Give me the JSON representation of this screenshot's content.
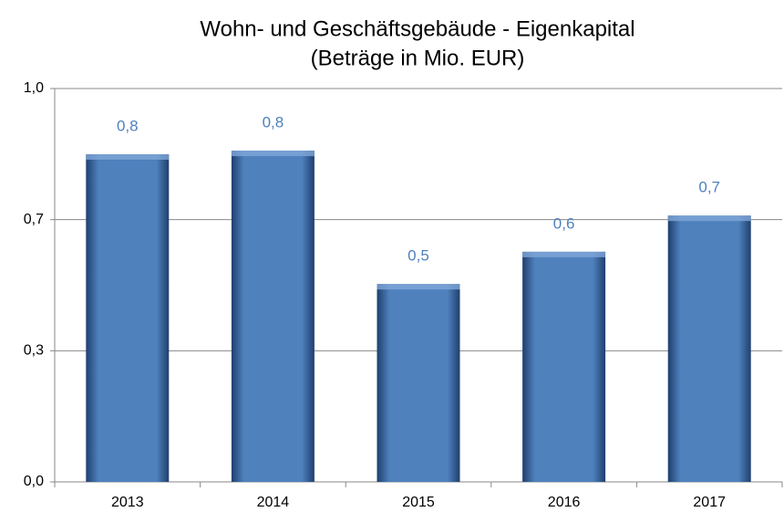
{
  "chart_data": {
    "type": "bar",
    "title": "Wohn- und Geschäftsgebäude - Eigenkapital",
    "subtitle": "(Beträge in Mio. EUR)",
    "categories": [
      "2013",
      "2014",
      "2015",
      "2016",
      "2017"
    ],
    "values": [
      0.833,
      0.842,
      0.503,
      0.585,
      0.677
    ],
    "value_labels": [
      "0,8",
      "0,8",
      "0,5",
      "0,6",
      "0,7"
    ],
    "color": "#4f81bd",
    "ylim": [
      0,
      1
    ],
    "yticks": [
      {
        "value": 0,
        "label": "0,0"
      },
      {
        "value": 0.3333,
        "label": "0,3"
      },
      {
        "value": 0.6667,
        "label": "0,7"
      },
      {
        "value": 1,
        "label": "1,0"
      }
    ],
    "grid": true
  }
}
